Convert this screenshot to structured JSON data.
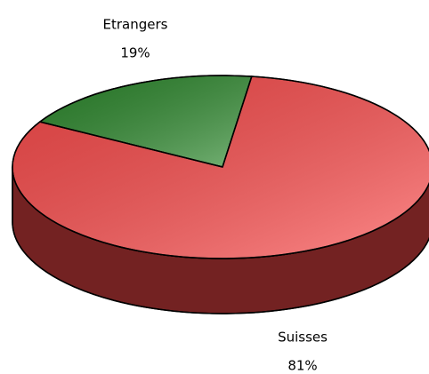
{
  "chart_data": {
    "type": "pie",
    "categories": [
      "Etrangers",
      "Suisses"
    ],
    "values": [
      19,
      81
    ],
    "value_labels": [
      "19%",
      "81%"
    ],
    "colors": [
      "#2e8b2e",
      "#ff4d4d"
    ]
  }
}
